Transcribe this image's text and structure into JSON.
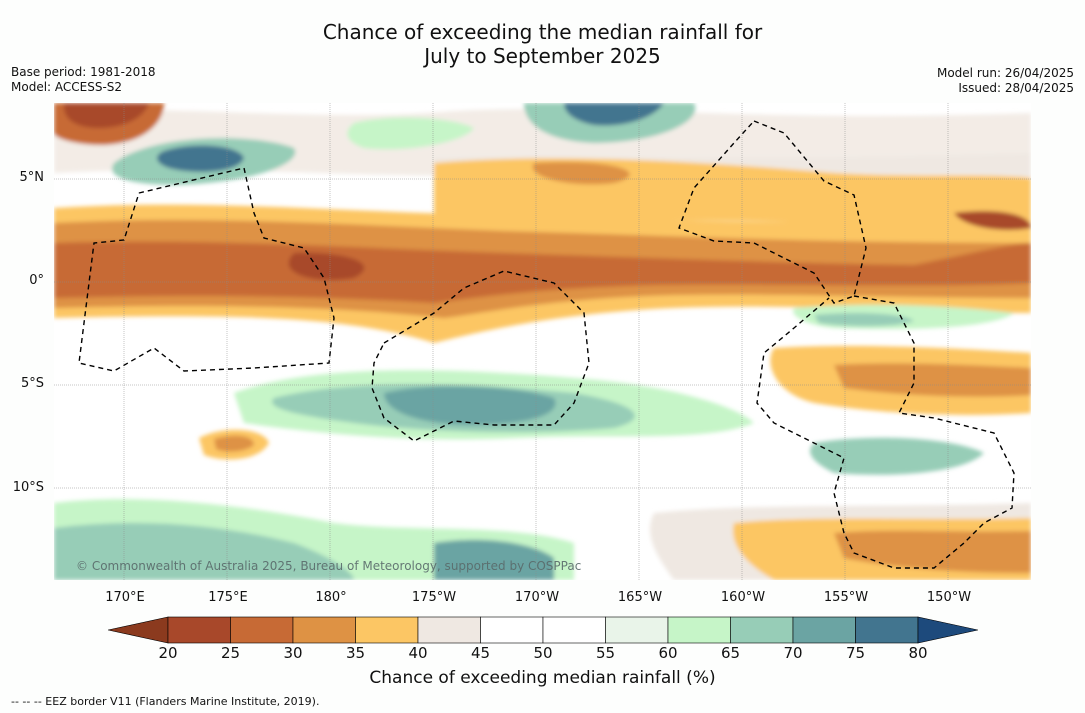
{
  "title_line1": "Chance of exceeding the median rainfall for",
  "title_line2": "July to September 2025",
  "meta_left": {
    "base_period": "Base period: 1981-2018",
    "model": "Model: ACCESS-S2"
  },
  "meta_right": {
    "model_run": "Model run: 26/04/2025",
    "issued": "Issued: 28/04/2025"
  },
  "lat_labels": [
    "5°N",
    "0°",
    "5°S",
    "10°S"
  ],
  "lon_labels": [
    "170°E",
    "175°E",
    "180°",
    "175°W",
    "170°W",
    "165°W",
    "160°W",
    "155°W",
    "150°W"
  ],
  "credit": "© Commonwealth of Australia 2025, Bureau of Meteorology, supported by COSPPac",
  "colorbar": {
    "ticks": [
      "20",
      "25",
      "30",
      "35",
      "40",
      "45",
      "50",
      "55",
      "60",
      "65",
      "70",
      "75",
      "80"
    ],
    "colors": [
      "#8b3a1e",
      "#a8482a",
      "#c76a35",
      "#de9244",
      "#fcc664",
      "#efe8e2",
      "#ffffff",
      "#ffffff",
      "#e9f4e9",
      "#c6f5c8",
      "#97cdb7",
      "#6ba4a3",
      "#42758f",
      "#1d4a7c"
    ],
    "title": "Chance of exceeding median rainfall (%)"
  },
  "footnote": "--  --  -- EEZ border V11 (Flanders Marine Institute, 2019)."
}
